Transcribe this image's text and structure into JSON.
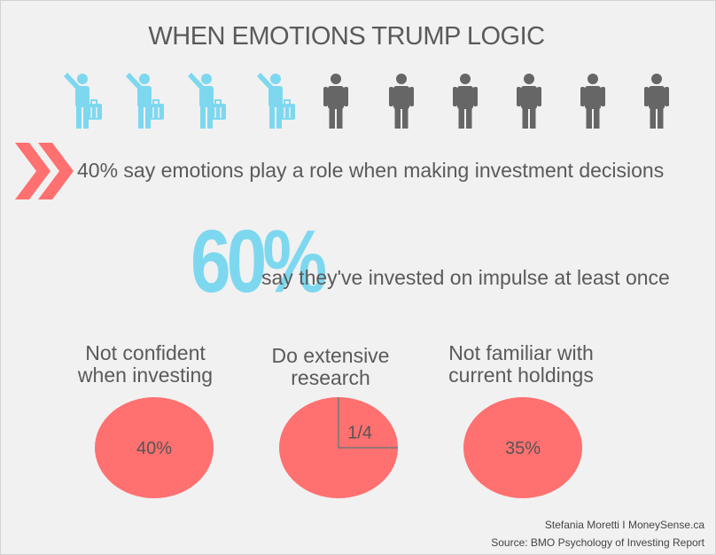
{
  "title": "WHEN EMOTIONS TRUMP LOGIC",
  "icons": {
    "highlight_color": "#7dd8ef",
    "muted_color": "#666666",
    "people": [
      {
        "icon": "businessperson-waving-icon",
        "highlighted": true
      },
      {
        "icon": "businessperson-waving-icon",
        "highlighted": true
      },
      {
        "icon": "businessperson-waving-icon",
        "highlighted": true
      },
      {
        "icon": "businessperson-waving-icon",
        "highlighted": true
      },
      {
        "icon": "person-standing-icon",
        "highlighted": false
      },
      {
        "icon": "person-standing-icon",
        "highlighted": false
      },
      {
        "icon": "person-standing-icon",
        "highlighted": false
      },
      {
        "icon": "person-standing-icon",
        "highlighted": false
      },
      {
        "icon": "person-standing-icon",
        "highlighted": false
      },
      {
        "icon": "person-standing-icon",
        "highlighted": false
      }
    ]
  },
  "stat1": {
    "icon": "double-chevron-right-icon",
    "text": "40% say emotions play a role when making investment decisions"
  },
  "stat2": {
    "big_value": "60%",
    "text": "say they've invested on impulse at least once"
  },
  "chart_data": {
    "type": "pie",
    "color": "#ff7070",
    "pies": [
      {
        "label": "Not confident\nwhen investing",
        "value": 40,
        "value_label": "40%"
      },
      {
        "label": "Do extensive\nresearch",
        "value": 25,
        "value_label": "1/4"
      },
      {
        "label": "Not familiar with\ncurrent holdings",
        "value": 35,
        "value_label": "35%"
      }
    ]
  },
  "credits": {
    "author": "Stefania Moretti I MoneySense.ca",
    "source": "Source: BMO Psychology of Investing Report"
  }
}
